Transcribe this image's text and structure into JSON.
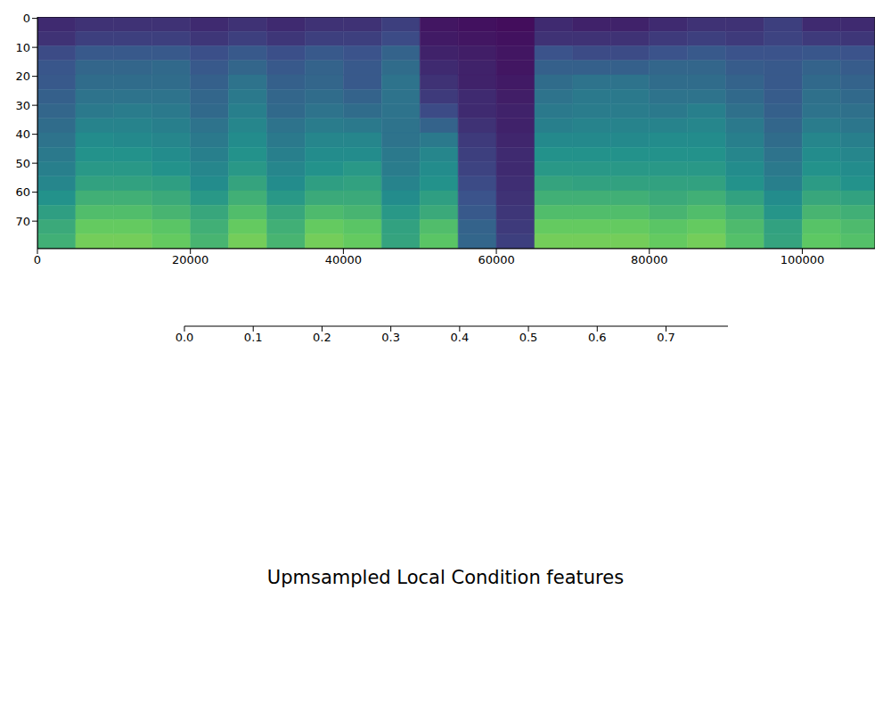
{
  "chart_data": {
    "type": "heatmap",
    "title": "Upmsampled Local Condition features",
    "xlim": [
      0,
      109500
    ],
    "xticks": [
      0,
      20000,
      40000,
      60000,
      80000,
      100000
    ],
    "ylim": [
      79.5,
      -0.5
    ],
    "yticks": [
      0,
      10,
      20,
      30,
      40,
      50,
      60,
      70
    ],
    "cells": {
      "x_edges": [
        0,
        5000,
        10000,
        15000,
        20000,
        25000,
        30000,
        35000,
        40000,
        45000,
        50000,
        55000,
        60000,
        65000,
        70000,
        75000,
        80000,
        85000,
        90000,
        95000,
        100000,
        105000,
        109500
      ],
      "y_edges": [
        -0.5,
        4.5,
        9.5,
        14.5,
        19.5,
        24.5,
        29.5,
        34.5,
        39.5,
        44.5,
        49.5,
        54.5,
        59.5,
        64.5,
        69.5,
        74.5,
        79.5
      ],
      "values": [
        [
          0.1,
          0.12,
          0.12,
          0.12,
          0.1,
          0.12,
          0.1,
          0.12,
          0.12,
          0.15,
          0.05,
          0.04,
          0.03,
          0.1,
          0.08,
          0.08,
          0.1,
          0.12,
          0.12,
          0.15,
          0.1,
          0.1
        ],
        [
          0.12,
          0.15,
          0.15,
          0.15,
          0.13,
          0.15,
          0.13,
          0.15,
          0.15,
          0.18,
          0.06,
          0.05,
          0.04,
          0.12,
          0.12,
          0.12,
          0.14,
          0.15,
          0.14,
          0.16,
          0.14,
          0.13
        ],
        [
          0.18,
          0.22,
          0.22,
          0.22,
          0.19,
          0.22,
          0.19,
          0.22,
          0.2,
          0.25,
          0.08,
          0.07,
          0.05,
          0.2,
          0.18,
          0.18,
          0.2,
          0.22,
          0.2,
          0.2,
          0.21,
          0.2
        ],
        [
          0.21,
          0.26,
          0.26,
          0.27,
          0.22,
          0.26,
          0.22,
          0.25,
          0.22,
          0.28,
          0.1,
          0.08,
          0.05,
          0.24,
          0.24,
          0.24,
          0.26,
          0.26,
          0.23,
          0.22,
          0.25,
          0.23
        ],
        [
          0.22,
          0.28,
          0.28,
          0.28,
          0.24,
          0.3,
          0.24,
          0.26,
          0.22,
          0.3,
          0.12,
          0.08,
          0.06,
          0.28,
          0.3,
          0.3,
          0.28,
          0.28,
          0.25,
          0.22,
          0.27,
          0.25
        ],
        [
          0.24,
          0.3,
          0.3,
          0.3,
          0.26,
          0.32,
          0.26,
          0.28,
          0.25,
          0.3,
          0.14,
          0.1,
          0.07,
          0.3,
          0.32,
          0.32,
          0.3,
          0.3,
          0.27,
          0.23,
          0.29,
          0.27
        ],
        [
          0.26,
          0.32,
          0.33,
          0.32,
          0.27,
          0.34,
          0.27,
          0.3,
          0.28,
          0.3,
          0.18,
          0.1,
          0.08,
          0.32,
          0.33,
          0.33,
          0.32,
          0.34,
          0.29,
          0.24,
          0.3,
          0.29
        ],
        [
          0.28,
          0.35,
          0.35,
          0.34,
          0.3,
          0.36,
          0.3,
          0.33,
          0.32,
          0.3,
          0.25,
          0.12,
          0.08,
          0.34,
          0.35,
          0.35,
          0.35,
          0.36,
          0.32,
          0.26,
          0.33,
          0.31
        ],
        [
          0.3,
          0.38,
          0.37,
          0.36,
          0.32,
          0.38,
          0.32,
          0.36,
          0.36,
          0.3,
          0.32,
          0.14,
          0.09,
          0.37,
          0.37,
          0.37,
          0.38,
          0.38,
          0.34,
          0.28,
          0.36,
          0.34
        ],
        [
          0.32,
          0.4,
          0.4,
          0.38,
          0.34,
          0.4,
          0.34,
          0.38,
          0.38,
          0.32,
          0.36,
          0.15,
          0.1,
          0.4,
          0.4,
          0.4,
          0.4,
          0.4,
          0.36,
          0.3,
          0.38,
          0.36
        ],
        [
          0.34,
          0.42,
          0.42,
          0.4,
          0.36,
          0.42,
          0.36,
          0.4,
          0.42,
          0.33,
          0.38,
          0.16,
          0.1,
          0.42,
          0.42,
          0.42,
          0.42,
          0.42,
          0.38,
          0.32,
          0.4,
          0.38
        ],
        [
          0.36,
          0.45,
          0.45,
          0.44,
          0.38,
          0.46,
          0.38,
          0.44,
          0.45,
          0.35,
          0.4,
          0.18,
          0.11,
          0.46,
          0.45,
          0.45,
          0.45,
          0.45,
          0.4,
          0.34,
          0.43,
          0.4
        ],
        [
          0.4,
          0.5,
          0.5,
          0.48,
          0.42,
          0.5,
          0.42,
          0.48,
          0.48,
          0.38,
          0.44,
          0.2,
          0.12,
          0.5,
          0.5,
          0.5,
          0.48,
          0.5,
          0.45,
          0.38,
          0.47,
          0.45
        ],
        [
          0.44,
          0.55,
          0.55,
          0.52,
          0.47,
          0.55,
          0.47,
          0.54,
          0.52,
          0.42,
          0.48,
          0.22,
          0.13,
          0.55,
          0.55,
          0.55,
          0.52,
          0.55,
          0.5,
          0.41,
          0.52,
          0.5
        ],
        [
          0.48,
          0.6,
          0.6,
          0.58,
          0.5,
          0.6,
          0.5,
          0.6,
          0.58,
          0.45,
          0.55,
          0.25,
          0.14,
          0.6,
          0.6,
          0.6,
          0.58,
          0.6,
          0.54,
          0.45,
          0.57,
          0.54
        ],
        [
          0.5,
          0.62,
          0.62,
          0.6,
          0.52,
          0.62,
          0.52,
          0.62,
          0.6,
          0.46,
          0.58,
          0.26,
          0.15,
          0.62,
          0.62,
          0.62,
          0.6,
          0.62,
          0.56,
          0.46,
          0.59,
          0.56
        ]
      ]
    },
    "colorbar": {
      "range": [
        0,
        0.79
      ],
      "ticks": [
        {
          "value": 0,
          "label": "0.0"
        },
        {
          "value": 0.1,
          "label": "0.1"
        },
        {
          "value": 0.2,
          "label": "0.2"
        },
        {
          "value": 0.3,
          "label": "0.3"
        },
        {
          "value": 0.4,
          "label": "0.4"
        },
        {
          "value": 0.5,
          "label": "0.5"
        },
        {
          "value": 0.6,
          "label": "0.6"
        },
        {
          "value": 0.7,
          "label": "0.7"
        }
      ]
    }
  }
}
